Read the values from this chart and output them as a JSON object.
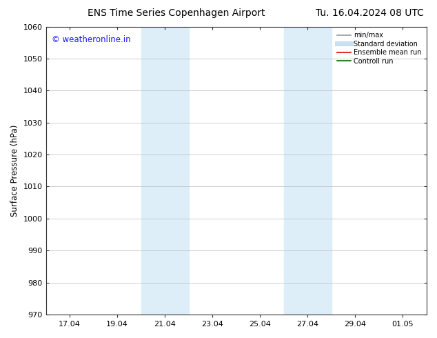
{
  "title_left": "ENS Time Series Copenhagen Airport",
  "title_right": "Tu. 16.04.2024 08 UTC",
  "ylabel": "Surface Pressure (hPa)",
  "ylim": [
    970,
    1060
  ],
  "yticks": [
    970,
    980,
    990,
    1000,
    1010,
    1020,
    1030,
    1040,
    1050,
    1060
  ],
  "xtick_labels": [
    "17.04",
    "19.04",
    "21.04",
    "23.04",
    "25.04",
    "27.04",
    "29.04",
    "01.05"
  ],
  "xtick_positions": [
    1,
    3,
    5,
    7,
    9,
    11,
    13,
    15
  ],
  "xlim": [
    0,
    16
  ],
  "shaded_bands": [
    {
      "x_start": 4.0,
      "x_end": 6.0,
      "color": "#ddeef8"
    },
    {
      "x_start": 10.0,
      "x_end": 12.0,
      "color": "#ddeef8"
    }
  ],
  "watermark_text": "© weatheronline.in",
  "watermark_color": "#1a1aff",
  "watermark_fontsize": 8.5,
  "legend_entries": [
    {
      "label": "min/max",
      "color": "#999999",
      "lw": 1.2,
      "style": "solid"
    },
    {
      "label": "Standard deviation",
      "color": "#c8dff0",
      "lw": 5,
      "style": "solid"
    },
    {
      "label": "Ensemble mean run",
      "color": "#dd0000",
      "lw": 1.2,
      "style": "solid"
    },
    {
      "label": "Controll run",
      "color": "#006600",
      "lw": 1.2,
      "style": "solid"
    }
  ],
  "background_color": "#ffffff",
  "grid_color": "#bbbbbb",
  "title_fontsize": 10,
  "axis_label_fontsize": 8.5,
  "tick_fontsize": 8
}
